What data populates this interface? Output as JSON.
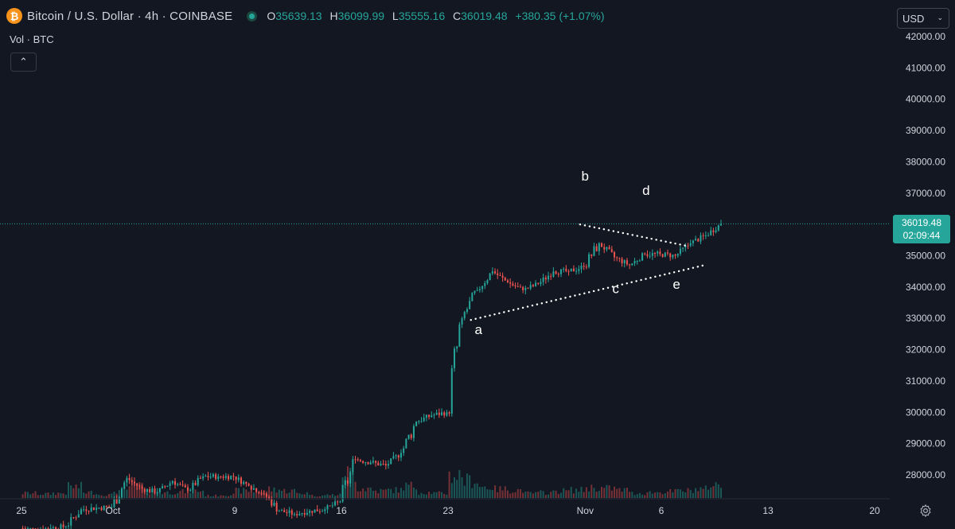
{
  "header": {
    "coin_glyph": "₿",
    "title": "Bitcoin / U.S. Dollar · 4h · COINBASE",
    "open_label": "O",
    "open": "35639.13",
    "high_label": "H",
    "high": "36099.99",
    "low_label": "L",
    "low": "35555.16",
    "close_label": "C",
    "close": "36019.48",
    "change": "+380.35 (+1.07%)"
  },
  "volume_label": "Vol · BTC",
  "currency": "USD",
  "last_price": "36019.48",
  "countdown": "02:09:44",
  "colors": {
    "up": "#26a69a",
    "down": "#ef5350",
    "background": "#131722",
    "annotation": "#ffffff"
  },
  "icons": {
    "collapse": "chevron-up-icon",
    "currency": "chevron-down-icon",
    "settings": "gear-icon"
  },
  "chart_data": {
    "type": "candlestick",
    "symbol": "BTCUSD",
    "interval": "4h",
    "ylim": [
      27500,
      42200
    ],
    "yticks": [
      "28000.00",
      "29000.00",
      "30000.00",
      "31000.00",
      "32000.00",
      "33000.00",
      "34000.00",
      "35000.00",
      "36000.00",
      "37000.00",
      "38000.00",
      "39000.00",
      "40000.00",
      "41000.00",
      "42000.00"
    ],
    "xticks": [
      "25",
      "Oct",
      "9",
      "16",
      "23",
      "Nov",
      "6",
      "13",
      "20"
    ],
    "grid": false,
    "candles": [
      {
        "date": "2023-09-25",
        "o": 26300,
        "c": 26250,
        "v": 6
      },
      {
        "date": "2023-09-26",
        "o": 26250,
        "c": 26300,
        "v": 5
      },
      {
        "date": "2023-09-27",
        "o": 26300,
        "c": 26350,
        "v": 6
      },
      {
        "date": "2023-09-28",
        "o": 26350,
        "c": 26900,
        "v": 14
      },
      {
        "date": "2023-09-29",
        "o": 26900,
        "c": 26950,
        "v": 7
      },
      {
        "date": "2023-09-30",
        "o": 26950,
        "c": 26970,
        "v": 4
      },
      {
        "date": "2023-10-01",
        "o": 26970,
        "c": 27900,
        "v": 9
      },
      {
        "date": "2023-10-02",
        "o": 27900,
        "c": 27550,
        "v": 16
      },
      {
        "date": "2023-10-03",
        "o": 27550,
        "c": 27450,
        "v": 8
      },
      {
        "date": "2023-10-04",
        "o": 27450,
        "c": 27800,
        "v": 7
      },
      {
        "date": "2023-10-05",
        "o": 27800,
        "c": 27500,
        "v": 8
      },
      {
        "date": "2023-10-06",
        "o": 27500,
        "c": 27950,
        "v": 9
      },
      {
        "date": "2023-10-07",
        "o": 27950,
        "c": 27950,
        "v": 3
      },
      {
        "date": "2023-10-08",
        "o": 27950,
        "c": 27950,
        "v": 4
      },
      {
        "date": "2023-10-09",
        "o": 27950,
        "c": 27650,
        "v": 9
      },
      {
        "date": "2023-10-10",
        "o": 27650,
        "c": 27400,
        "v": 8
      },
      {
        "date": "2023-10-11",
        "o": 27400,
        "c": 26850,
        "v": 11
      },
      {
        "date": "2023-10-12",
        "o": 26850,
        "c": 26750,
        "v": 9
      },
      {
        "date": "2023-10-13",
        "o": 26750,
        "c": 26850,
        "v": 6
      },
      {
        "date": "2023-10-14",
        "o": 26850,
        "c": 26900,
        "v": 3
      },
      {
        "date": "2023-10-15",
        "o": 26900,
        "c": 27150,
        "v": 4
      },
      {
        "date": "2023-10-16",
        "o": 27150,
        "c": 28500,
        "v": 31
      },
      {
        "date": "2023-10-17",
        "o": 28500,
        "c": 28400,
        "v": 12
      },
      {
        "date": "2023-10-18",
        "o": 28400,
        "c": 28300,
        "v": 9
      },
      {
        "date": "2023-10-19",
        "o": 28300,
        "c": 28700,
        "v": 10
      },
      {
        "date": "2023-10-20",
        "o": 28700,
        "c": 29700,
        "v": 15
      },
      {
        "date": "2023-10-21",
        "o": 29700,
        "c": 29900,
        "v": 7
      },
      {
        "date": "2023-10-22",
        "o": 29900,
        "c": 30000,
        "v": 6
      },
      {
        "date": "2023-10-23",
        "o": 30000,
        "c": 33000,
        "v": 28
      },
      {
        "date": "2023-10-24",
        "o": 33000,
        "c": 33900,
        "v": 22
      },
      {
        "date": "2023-10-25",
        "o": 33900,
        "c": 34500,
        "v": 14
      },
      {
        "date": "2023-10-26",
        "o": 34500,
        "c": 34150,
        "v": 11
      },
      {
        "date": "2023-10-27",
        "o": 34150,
        "c": 33900,
        "v": 10
      },
      {
        "date": "2023-10-28",
        "o": 33900,
        "c": 34100,
        "v": 6
      },
      {
        "date": "2023-10-29",
        "o": 34100,
        "c": 34500,
        "v": 7
      },
      {
        "date": "2023-10-30",
        "o": 34500,
        "c": 34500,
        "v": 9
      },
      {
        "date": "2023-10-31",
        "o": 34500,
        "c": 34650,
        "v": 10
      },
      {
        "date": "2023-11-01",
        "o": 34650,
        "c": 35400,
        "v": 13
      },
      {
        "date": "2023-11-02",
        "o": 35400,
        "c": 34950,
        "v": 12
      },
      {
        "date": "2023-11-03",
        "o": 34950,
        "c": 34700,
        "v": 10
      },
      {
        "date": "2023-11-04",
        "o": 34700,
        "c": 35050,
        "v": 6
      },
      {
        "date": "2023-11-05",
        "o": 35050,
        "c": 35050,
        "v": 7
      },
      {
        "date": "2023-11-06",
        "o": 35050,
        "c": 35000,
        "v": 8
      },
      {
        "date": "2023-11-07",
        "o": 35000,
        "c": 35400,
        "v": 9
      },
      {
        "date": "2023-11-08",
        "o": 35400,
        "c": 35650,
        "v": 11
      },
      {
        "date": "2023-11-09",
        "o": 35650,
        "c": 36019,
        "v": 16
      }
    ],
    "trendlines": [
      {
        "name": "upper",
        "from": {
          "x": "2023-10-31T16:00",
          "y": 36000
        },
        "to": {
          "x": "2023-11-07T20:00",
          "y": 35300
        },
        "style": "dotted"
      },
      {
        "name": "lower",
        "from": {
          "x": "2023-10-24T12:00",
          "y": 32950
        },
        "to": {
          "x": "2023-11-08T20:00",
          "y": 34700
        },
        "style": "dotted"
      }
    ],
    "annotations": [
      {
        "text": "a",
        "x": "2023-10-25",
        "y": 32500
      },
      {
        "text": "b",
        "x": "2023-11-01",
        "y": 37400
      },
      {
        "text": "c",
        "x": "2023-11-03",
        "y": 33800
      },
      {
        "text": "d",
        "x": "2023-11-05",
        "y": 36950
      },
      {
        "text": "e",
        "x": "2023-11-07",
        "y": 33950
      }
    ]
  }
}
